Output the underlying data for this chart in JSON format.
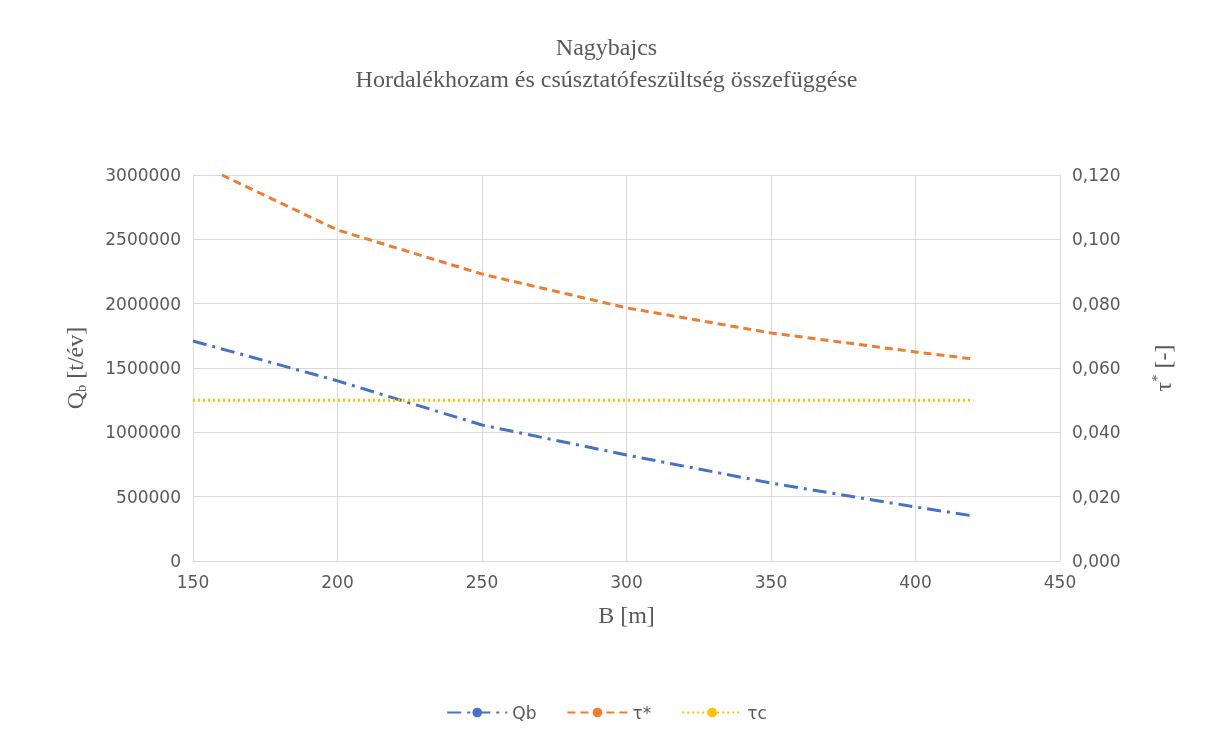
{
  "chart_data": {
    "type": "line",
    "title": "Nagybajcs",
    "subtitle": "Hordalékhozam és csúsztatófeszültség összefüggése",
    "xlabel": "B [m]",
    "ylabel": "Q$_{b}$ [t/év]",
    "y2label": "τ$^{*}$ [-]",
    "xlim": [
      150,
      450
    ],
    "xticks": [
      150,
      200,
      250,
      300,
      350,
      400,
      450
    ],
    "ylim": [
      0,
      3000000
    ],
    "yticks": [
      0,
      500000,
      1000000,
      1500000,
      2000000,
      2500000,
      3000000
    ],
    "y2lim": [
      0,
      0.12
    ],
    "y2ticks": [
      {
        "value": 0,
        "label": "0,000"
      },
      {
        "value": 0.02,
        "label": "0,020"
      },
      {
        "value": 0.04,
        "label": "0,040"
      },
      {
        "value": 0.06,
        "label": "0,060"
      },
      {
        "value": 0.08,
        "label": "0,080"
      },
      {
        "value": 0.1,
        "label": "0,100"
      },
      {
        "value": 0.12,
        "label": "0,120"
      }
    ],
    "grid": true,
    "legend": "bottom",
    "marker": "none",
    "series": [
      {
        "name": "Qb",
        "color": "#4472c4",
        "line_style": "dashdot",
        "x": [
          150,
          200,
          250,
          300,
          350,
          400,
          420
        ],
        "values": [
          1710000,
          1400000,
          1057000,
          824000,
          606000,
          420000,
          350000
        ]
      },
      {
        "name": "τ*",
        "color": "#ed7d31",
        "line_style": "dashed",
        "axis": "y2",
        "x": [
          160,
          200,
          250,
          300,
          350,
          400,
          420
        ],
        "values": [
          0.12,
          0.1029,
          0.0892,
          0.0787,
          0.0709,
          0.065,
          0.0628
        ]
      },
      {
        "name": "τc",
        "color": "#ffc000",
        "line_style": "dotted",
        "axis": "y2",
        "x": [
          150,
          420
        ],
        "values": [
          0.05,
          0.05
        ]
      }
    ]
  }
}
